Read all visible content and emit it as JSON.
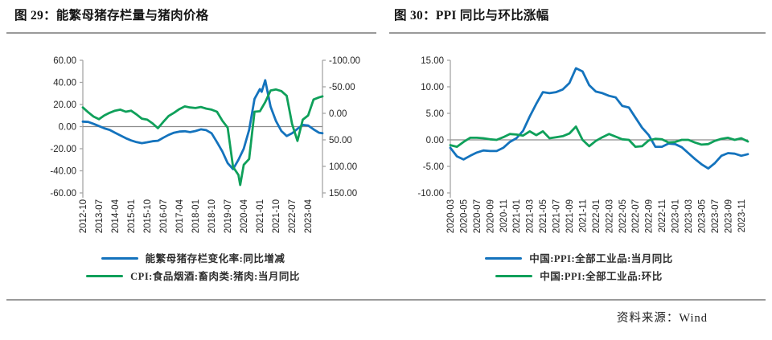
{
  "page": {
    "source_note": "资料来源：Wind",
    "colors": {
      "series_blue": "#1473BD",
      "series_green": "#0FA05A",
      "axis_line": "#A6A6A6",
      "zero_line": "#8C8C8C",
      "divider": "#9A9A9A",
      "tick_text": "#262626"
    }
  },
  "chart_data": [
    {
      "id": "fig29",
      "type": "line",
      "title": "图 29：能繁母猪存栏量与猪肉价格",
      "grid": false,
      "legend_position": "bottom",
      "x_start": "2012-10",
      "x_end": "2023-12",
      "x_tick_labels": [
        "2012-10",
        "2013-07",
        "2014-04",
        "2015-01",
        "2015-10",
        "2016-07",
        "2017-04",
        "2018-01",
        "2018-10",
        "2019-07",
        "2020-04",
        "2021-01",
        "2021-10",
        "2022-07",
        "2023-04"
      ],
      "left_axis": {
        "min": -60,
        "max": 60,
        "direction": "normal",
        "tick_labels": [
          "60.00",
          "40.00",
          "20.00",
          "0.00",
          "-20.00",
          "-40.00",
          "-60.00"
        ]
      },
      "right_axis": {
        "min": -100,
        "max": 150,
        "direction": "inverted",
        "tick_labels": [
          "-100.00",
          "-50.00",
          "0.00",
          "50.00",
          "100.00",
          "150.00"
        ]
      },
      "series": [
        {
          "name": "能繁母猪存栏变化率:同比增减",
          "color": "#1473BD",
          "axis": "left",
          "points": [
            [
              "2012-10",
              4.5
            ],
            [
              "2013-01",
              4.2
            ],
            [
              "2013-04",
              2.5
            ],
            [
              "2013-07",
              0.5
            ],
            [
              "2013-10",
              -1.5
            ],
            [
              "2014-01",
              -3.0
            ],
            [
              "2014-04",
              -5.5
            ],
            [
              "2014-07",
              -8.0
            ],
            [
              "2014-10",
              -10.5
            ],
            [
              "2015-01",
              -12.5
            ],
            [
              "2015-04",
              -14.0
            ],
            [
              "2015-07",
              -15.0
            ],
            [
              "2015-10",
              -14.2
            ],
            [
              "2016-01",
              -13.2
            ],
            [
              "2016-04",
              -12.8
            ],
            [
              "2016-07",
              -10.0
            ],
            [
              "2016-10",
              -7.5
            ],
            [
              "2017-01",
              -5.5
            ],
            [
              "2017-04",
              -4.5
            ],
            [
              "2017-07",
              -4.2
            ],
            [
              "2017-10",
              -5.0
            ],
            [
              "2018-01",
              -4.0
            ],
            [
              "2018-04",
              -2.5
            ],
            [
              "2018-07",
              -3.2
            ],
            [
              "2018-10",
              -6.0
            ],
            [
              "2019-01",
              -14.0
            ],
            [
              "2019-04",
              -22.5
            ],
            [
              "2019-07",
              -33.0
            ],
            [
              "2019-10",
              -38.5
            ],
            [
              "2020-01",
              -30.0
            ],
            [
              "2020-04",
              -20.0
            ],
            [
              "2020-07",
              -3.0
            ],
            [
              "2020-10",
              25.0
            ],
            [
              "2021-01",
              34.0
            ],
            [
              "2021-02",
              31.5
            ],
            [
              "2021-04",
              42.0
            ],
            [
              "2021-07",
              18.0
            ],
            [
              "2021-10",
              5.0
            ],
            [
              "2022-01",
              -4.0
            ],
            [
              "2022-04",
              -8.5
            ],
            [
              "2022-07",
              -6.0
            ],
            [
              "2022-10",
              -2.0
            ],
            [
              "2023-01",
              1.5
            ],
            [
              "2023-04",
              1.0
            ],
            [
              "2023-07",
              -2.5
            ],
            [
              "2023-10",
              -5.5
            ],
            [
              "2023-12",
              -6.0
            ]
          ]
        },
        {
          "name": "CPI:食品烟酒:畜肉类:猪肉:当月同比",
          "color": "#0FA05A",
          "axis": "right",
          "points": [
            [
              "2012-10",
              -11
            ],
            [
              "2013-01",
              -2
            ],
            [
              "2013-04",
              6
            ],
            [
              "2013-07",
              11
            ],
            [
              "2013-10",
              4
            ],
            [
              "2014-01",
              -1
            ],
            [
              "2014-04",
              -5
            ],
            [
              "2014-07",
              -7
            ],
            [
              "2014-10",
              -3
            ],
            [
              "2015-01",
              -5
            ],
            [
              "2015-04",
              2
            ],
            [
              "2015-07",
              10
            ],
            [
              "2015-10",
              12
            ],
            [
              "2016-01",
              19
            ],
            [
              "2016-04",
              28
            ],
            [
              "2016-07",
              16
            ],
            [
              "2016-10",
              5
            ],
            [
              "2017-01",
              -1
            ],
            [
              "2017-04",
              -8
            ],
            [
              "2017-07",
              -13
            ],
            [
              "2017-10",
              -11
            ],
            [
              "2018-01",
              -10
            ],
            [
              "2018-04",
              -12
            ],
            [
              "2018-07",
              -9
            ],
            [
              "2018-10",
              -7
            ],
            [
              "2019-01",
              -3
            ],
            [
              "2019-04",
              14
            ],
            [
              "2019-07",
              27
            ],
            [
              "2019-10",
              101
            ],
            [
              "2020-01",
              116
            ],
            [
              "2020-02",
              135
            ],
            [
              "2020-04",
              97
            ],
            [
              "2020-07",
              86
            ],
            [
              "2020-10",
              -3
            ],
            [
              "2021-01",
              -4
            ],
            [
              "2021-04",
              -21
            ],
            [
              "2021-07",
              -43
            ],
            [
              "2021-10",
              -45
            ],
            [
              "2022-01",
              -42
            ],
            [
              "2022-04",
              -33
            ],
            [
              "2022-07",
              20
            ],
            [
              "2022-10",
              52
            ],
            [
              "2023-01",
              12
            ],
            [
              "2023-04",
              4
            ],
            [
              "2023-07",
              -26
            ],
            [
              "2023-10",
              -30
            ],
            [
              "2023-12",
              -32
            ]
          ]
        }
      ]
    },
    {
      "id": "fig30",
      "type": "line",
      "title": "图 30：PPI 同比与环比涨幅",
      "grid": false,
      "legend_position": "bottom",
      "x_start": "2020-03",
      "x_end": "2023-12",
      "x_tick_labels": [
        "2020-03",
        "2020-05",
        "2020-07",
        "2020-09",
        "2020-11",
        "2021-01",
        "2021-03",
        "2021-05",
        "2021-07",
        "2021-09",
        "2021-11",
        "2022-01",
        "2022-03",
        "2022-05",
        "2022-07",
        "2022-09",
        "2022-11",
        "2023-01",
        "2023-03",
        "2023-05",
        "2023-07",
        "2023-09",
        "2023-11"
      ],
      "left_axis": {
        "min": -10,
        "max": 15,
        "direction": "normal",
        "tick_labels": [
          "15.00",
          "10.00",
          "5.00",
          "0.00",
          "-5.00",
          "-10.00"
        ]
      },
      "series": [
        {
          "name": "中国:PPI:全部工业品:当月同比",
          "color": "#1473BD",
          "axis": "left",
          "points": [
            [
              "2020-03",
              -1.5
            ],
            [
              "2020-04",
              -3.1
            ],
            [
              "2020-05",
              -3.7
            ],
            [
              "2020-06",
              -3.0
            ],
            [
              "2020-07",
              -2.4
            ],
            [
              "2020-08",
              -2.0
            ],
            [
              "2020-09",
              -2.1
            ],
            [
              "2020-10",
              -2.1
            ],
            [
              "2020-11",
              -1.5
            ],
            [
              "2020-12",
              -0.4
            ],
            [
              "2021-01",
              0.3
            ],
            [
              "2021-02",
              1.7
            ],
            [
              "2021-03",
              4.4
            ],
            [
              "2021-04",
              6.8
            ],
            [
              "2021-05",
              9.0
            ],
            [
              "2021-06",
              8.8
            ],
            [
              "2021-07",
              9.0
            ],
            [
              "2021-08",
              9.5
            ],
            [
              "2021-09",
              10.7
            ],
            [
              "2021-10",
              13.5
            ],
            [
              "2021-11",
              12.9
            ],
            [
              "2021-12",
              10.3
            ],
            [
              "2022-01",
              9.1
            ],
            [
              "2022-02",
              8.8
            ],
            [
              "2022-03",
              8.3
            ],
            [
              "2022-04",
              8.0
            ],
            [
              "2022-05",
              6.4
            ],
            [
              "2022-06",
              6.1
            ],
            [
              "2022-07",
              4.2
            ],
            [
              "2022-08",
              2.3
            ],
            [
              "2022-09",
              0.9
            ],
            [
              "2022-10",
              -1.3
            ],
            [
              "2022-11",
              -1.3
            ],
            [
              "2022-12",
              -0.7
            ],
            [
              "2023-01",
              -0.8
            ],
            [
              "2023-02",
              -1.4
            ],
            [
              "2023-03",
              -2.5
            ],
            [
              "2023-04",
              -3.6
            ],
            [
              "2023-05",
              -4.6
            ],
            [
              "2023-06",
              -5.4
            ],
            [
              "2023-07",
              -4.4
            ],
            [
              "2023-08",
              -3.0
            ],
            [
              "2023-09",
              -2.5
            ],
            [
              "2023-10",
              -2.6
            ],
            [
              "2023-11",
              -3.0
            ],
            [
              "2023-12",
              -2.7
            ]
          ]
        },
        {
          "name": "中国:PPI:全部工业品:环比",
          "color": "#0FA05A",
          "axis": "left",
          "points": [
            [
              "2020-03",
              -1.0
            ],
            [
              "2020-04",
              -1.3
            ],
            [
              "2020-05",
              -0.4
            ],
            [
              "2020-06",
              0.4
            ],
            [
              "2020-07",
              0.4
            ],
            [
              "2020-08",
              0.3
            ],
            [
              "2020-09",
              0.1
            ],
            [
              "2020-10",
              0.0
            ],
            [
              "2020-11",
              0.5
            ],
            [
              "2020-12",
              1.1
            ],
            [
              "2021-01",
              1.0
            ],
            [
              "2021-02",
              0.8
            ],
            [
              "2021-03",
              1.6
            ],
            [
              "2021-04",
              0.9
            ],
            [
              "2021-05",
              1.6
            ],
            [
              "2021-06",
              0.3
            ],
            [
              "2021-07",
              0.5
            ],
            [
              "2021-08",
              0.7
            ],
            [
              "2021-09",
              1.2
            ],
            [
              "2021-10",
              2.5
            ],
            [
              "2021-11",
              0.0
            ],
            [
              "2021-12",
              -1.2
            ],
            [
              "2022-01",
              -0.2
            ],
            [
              "2022-02",
              0.5
            ],
            [
              "2022-03",
              1.1
            ],
            [
              "2022-04",
              0.6
            ],
            [
              "2022-05",
              0.1
            ],
            [
              "2022-06",
              0.0
            ],
            [
              "2022-07",
              -1.3
            ],
            [
              "2022-08",
              -1.2
            ],
            [
              "2022-09",
              -0.1
            ],
            [
              "2022-10",
              0.2
            ],
            [
              "2022-11",
              0.1
            ],
            [
              "2022-12",
              -0.5
            ],
            [
              "2023-01",
              -0.4
            ],
            [
              "2023-02",
              0.0
            ],
            [
              "2023-03",
              0.0
            ],
            [
              "2023-04",
              -0.5
            ],
            [
              "2023-05",
              -0.9
            ],
            [
              "2023-06",
              -0.8
            ],
            [
              "2023-07",
              -0.2
            ],
            [
              "2023-08",
              0.2
            ],
            [
              "2023-09",
              0.4
            ],
            [
              "2023-10",
              0.0
            ],
            [
              "2023-11",
              0.3
            ],
            [
              "2023-12",
              -0.3
            ]
          ]
        }
      ]
    }
  ]
}
